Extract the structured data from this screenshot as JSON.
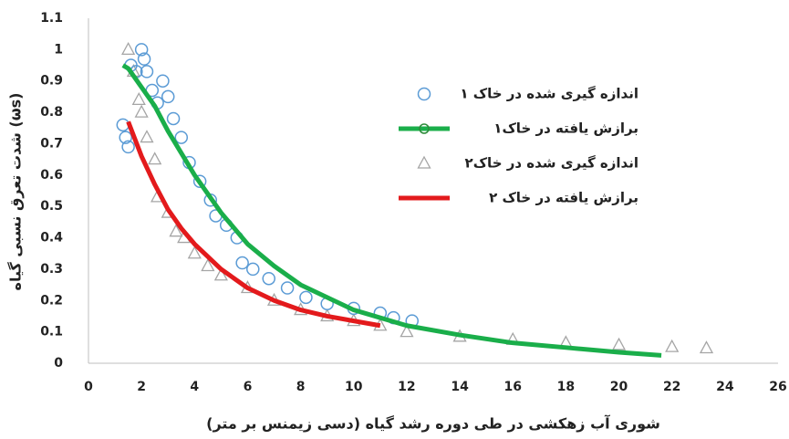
{
  "chart_data": {
    "type": "scatter",
    "y_label": "شدت تعرق نسبی گیاه (ωs)",
    "x_label": "شوری آب زهکشی در طی دوره رشد گیاه (دسی زیمنس بر متر)",
    "xlim": [
      0,
      26
    ],
    "xticks": [
      0,
      2,
      4,
      6,
      8,
      10,
      12,
      14,
      16,
      18,
      20,
      22,
      24,
      26
    ],
    "ylim": [
      0,
      1.1
    ],
    "yticks": [
      0,
      0.1,
      0.2,
      0.3,
      0.4,
      0.5,
      0.6,
      0.7,
      0.8,
      0.9,
      1,
      1.1
    ],
    "grid": false,
    "legend": "upper-right",
    "series": [
      {
        "name": "اندازه گیری شده در خاک ۱",
        "color": "#5b9bd5",
        "mode": "markers",
        "marker": "circle",
        "x": [
          1.3,
          1.4,
          1.5,
          1.6,
          1.8,
          2.0,
          2.1,
          2.2,
          2.4,
          2.6,
          2.8,
          3.0,
          3.2,
          3.5,
          3.8,
          4.2,
          4.6,
          4.8,
          5.2,
          5.6,
          5.8,
          6.2,
          6.8,
          7.5,
          8.2,
          9.0,
          10.0,
          11.0,
          11.5,
          12.2
        ],
        "values": [
          0.76,
          0.72,
          0.69,
          0.95,
          0.93,
          1.0,
          0.97,
          0.93,
          0.87,
          0.83,
          0.9,
          0.85,
          0.78,
          0.72,
          0.64,
          0.58,
          0.52,
          0.47,
          0.44,
          0.4,
          0.32,
          0.3,
          0.27,
          0.24,
          0.21,
          0.19,
          0.175,
          0.16,
          0.145,
          0.135
        ]
      },
      {
        "name": "برازش یافته در خاک۱",
        "color": "#1aae4a",
        "mode": "line",
        "marker": "circle",
        "x": [
          1.3,
          1.5,
          2,
          2.5,
          3,
          4,
          5,
          6,
          7,
          8,
          10,
          12,
          14,
          16,
          18,
          20,
          21.6
        ],
        "values": [
          0.95,
          0.94,
          0.88,
          0.82,
          0.74,
          0.6,
          0.48,
          0.38,
          0.31,
          0.25,
          0.17,
          0.12,
          0.09,
          0.065,
          0.05,
          0.035,
          0.025
        ]
      },
      {
        "name": "اندازه گیری شده در خاک۲",
        "color": "#a5a5a5",
        "mode": "markers",
        "marker": "triangle",
        "x": [
          1.5,
          1.7,
          1.9,
          2.0,
          2.2,
          2.5,
          2.6,
          3.0,
          3.3,
          3.6,
          4.0,
          4.5,
          5.0,
          6.0,
          7.0,
          8.0,
          9.0,
          10.0,
          11.0,
          12.0,
          14.0,
          16.0,
          18.0,
          20.0,
          22.0,
          23.3
        ],
        "values": [
          1.0,
          0.93,
          0.84,
          0.8,
          0.72,
          0.65,
          0.53,
          0.48,
          0.42,
          0.4,
          0.35,
          0.31,
          0.28,
          0.24,
          0.2,
          0.17,
          0.15,
          0.135,
          0.12,
          0.1,
          0.085,
          0.075,
          0.065,
          0.058,
          0.052,
          0.048
        ]
      },
      {
        "name": "برازش یافته در خاک ۲",
        "color": "#e31a1c",
        "mode": "line",
        "marker": "none",
        "x": [
          1.5,
          2,
          2.5,
          3,
          3.5,
          4,
          5,
          6,
          7,
          8,
          9,
          10,
          11
        ],
        "values": [
          0.77,
          0.66,
          0.57,
          0.49,
          0.43,
          0.38,
          0.3,
          0.24,
          0.2,
          0.17,
          0.15,
          0.135,
          0.12
        ]
      }
    ]
  }
}
